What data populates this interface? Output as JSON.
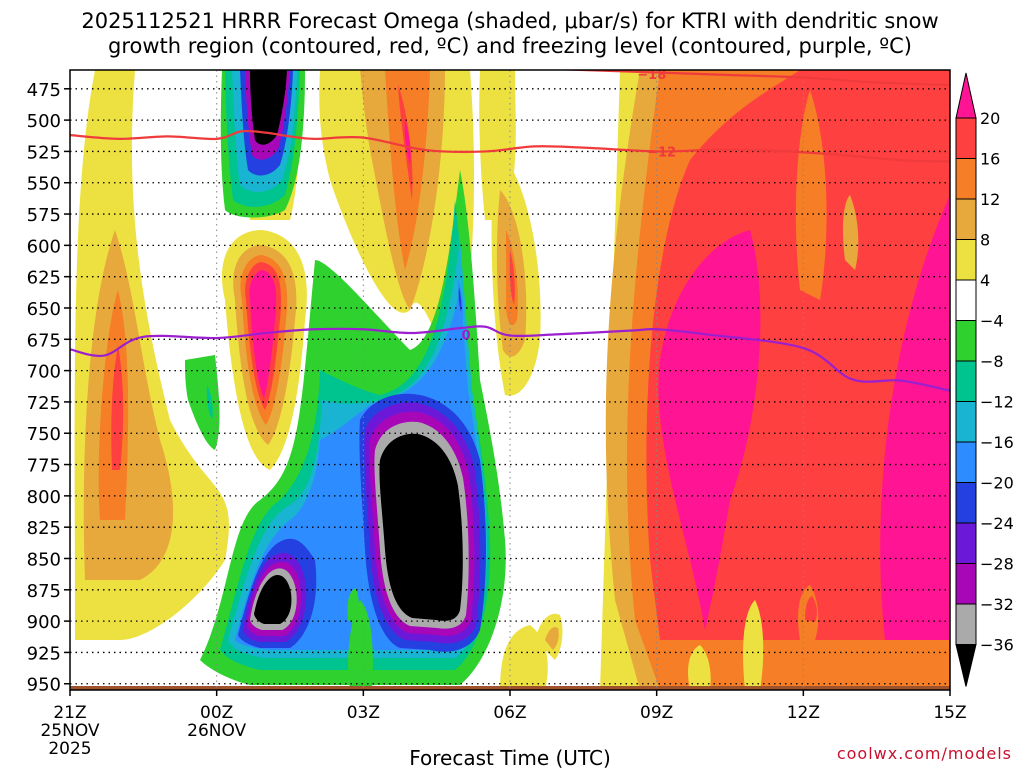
{
  "chart_data": {
    "type": "heatmap",
    "title_lines": [
      "2025112521 HRRR Forecast Omega (shaded, μbar/s) for KTRI with dendritic snow",
      "growth region (contoured, red, ºC) and freezing level (contoured, purple, ºC)"
    ],
    "xlabel": "Forecast Time (UTC)",
    "credit": "coolwx.com/models",
    "x_range": [
      0,
      18
    ],
    "y_range": [
      460,
      955
    ],
    "y_ticks": [
      475,
      500,
      525,
      550,
      575,
      600,
      625,
      650,
      675,
      700,
      725,
      750,
      775,
      800,
      825,
      850,
      875,
      900,
      925,
      950
    ],
    "x_ticks": [
      {
        "hour": 0,
        "lines": [
          "21Z",
          "25NOV",
          "2025"
        ]
      },
      {
        "hour": 3,
        "lines": [
          "00Z",
          "26NOV"
        ]
      },
      {
        "hour": 6,
        "lines": [
          "03Z"
        ]
      },
      {
        "hour": 9,
        "lines": [
          "06Z"
        ]
      },
      {
        "hour": 12,
        "lines": [
          "09Z"
        ]
      },
      {
        "hour": 15,
        "lines": [
          "12Z"
        ]
      },
      {
        "hour": 18,
        "lines": [
          "15Z"
        ]
      }
    ],
    "colorbar": {
      "labels": [
        "20",
        "16",
        "12",
        "8",
        "4",
        "−4",
        "−8",
        "−12",
        "−16",
        "−20",
        "−24",
        "−28",
        "−32",
        "−36"
      ],
      "colors": [
        "#ff1493",
        "#ff4040",
        "#f57e27",
        "#e8a93c",
        "#ede142",
        "#ffffff",
        "#2fd12f",
        "#00c490",
        "#18b4d2",
        "#2d8cff",
        "#2440e0",
        "#6c18d8",
        "#a807b8",
        "#aaaaaa",
        "#000000"
      ]
    },
    "contours": [
      {
        "name": "-18",
        "color": "#ef3b3b",
        "label": "−18",
        "label_at": [
          11.9,
          463
        ],
        "points": [
          [
            8.9,
            458
          ],
          [
            10.5,
            460
          ],
          [
            12,
            462
          ],
          [
            13.5,
            464
          ],
          [
            15,
            466
          ],
          [
            16.5,
            470
          ],
          [
            18,
            472
          ]
        ]
      },
      {
        "name": "-12",
        "color": "#ef3b3b",
        "label": "−12",
        "label_at": [
          12.1,
          525
        ],
        "points": [
          [
            0,
            512
          ],
          [
            1,
            515
          ],
          [
            2,
            513
          ],
          [
            3,
            515
          ],
          [
            3.5,
            509
          ],
          [
            4,
            510
          ],
          [
            4.5,
            513
          ],
          [
            5,
            515
          ],
          [
            6,
            514
          ],
          [
            7.3,
            524
          ],
          [
            8.5,
            525
          ],
          [
            9.5,
            521
          ],
          [
            10.5,
            522
          ],
          [
            12,
            525
          ],
          [
            13,
            524
          ],
          [
            14,
            524
          ],
          [
            15.5,
            527
          ],
          [
            17,
            532
          ],
          [
            18,
            533
          ]
        ]
      },
      {
        "name": "0",
        "color": "#9b1fcf",
        "label": "0",
        "label_at": [
          8.1,
          671
        ],
        "points": [
          [
            0,
            683
          ],
          [
            0.7,
            688
          ],
          [
            1.5,
            673
          ],
          [
            3,
            674
          ],
          [
            4,
            670
          ],
          [
            5,
            667
          ],
          [
            6,
            667
          ],
          [
            7,
            670
          ],
          [
            8,
            666
          ],
          [
            8.5,
            665
          ],
          [
            9,
            672
          ],
          [
            10,
            671
          ],
          [
            11.5,
            668
          ],
          [
            12,
            667
          ],
          [
            13,
            671
          ],
          [
            15,
            682
          ],
          [
            16,
            707
          ],
          [
            17,
            708
          ],
          [
            18,
            716
          ]
        ]
      }
    ]
  }
}
